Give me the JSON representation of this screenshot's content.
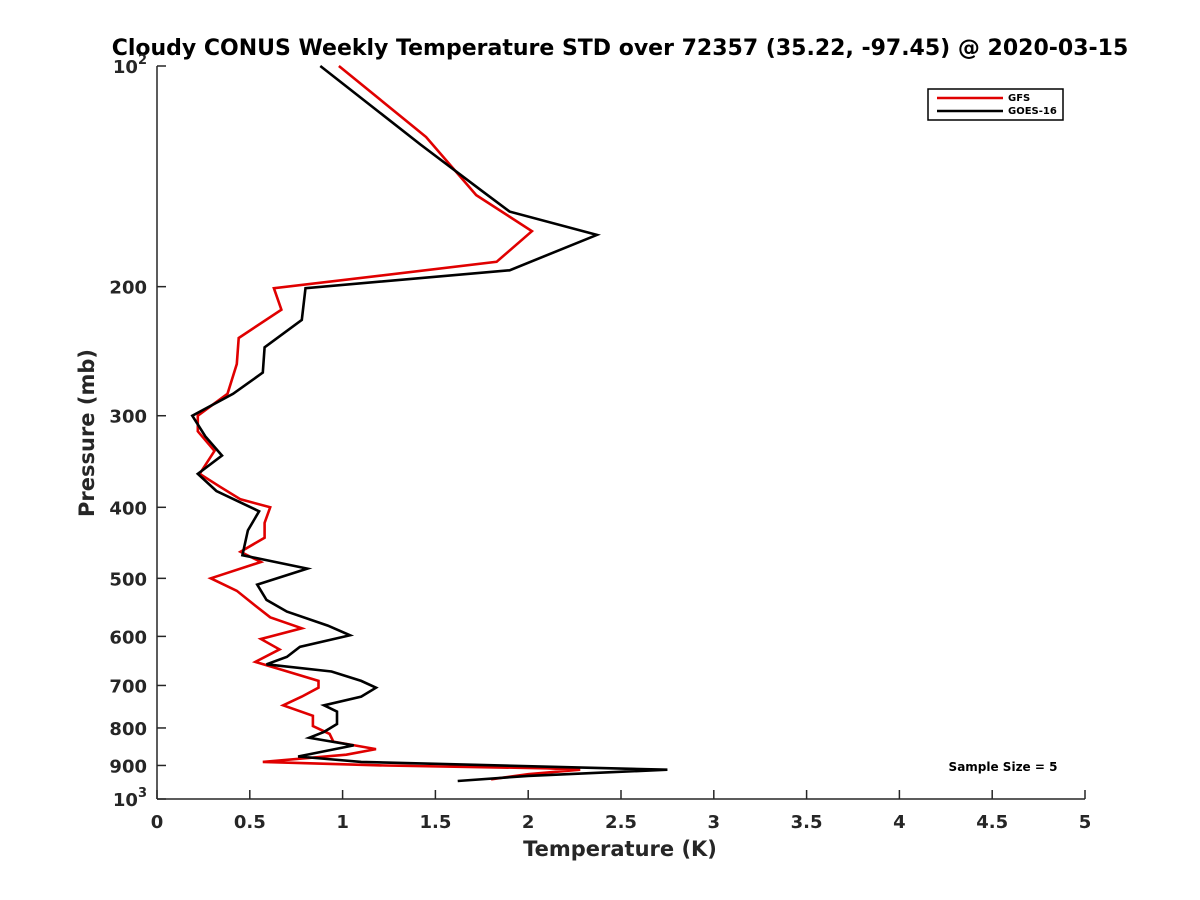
{
  "chart_data": {
    "type": "line",
    "title": "Cloudy CONUS Weekly Temperature STD over 72357 (35.22, -97.45) @ 2020-03-15",
    "xlabel": "Temperature (K)",
    "ylabel": "Pressure (mb)",
    "xlim": [
      0,
      5
    ],
    "ylim": [
      100,
      1000
    ],
    "y_scale": "log",
    "y_reversed": true,
    "grid": false,
    "legend_position": "top-right",
    "x_ticks": [
      0,
      0.5,
      1,
      1.5,
      2,
      2.5,
      3,
      3.5,
      4,
      4.5,
      5
    ],
    "x_tick_labels": [
      "0",
      "0.5",
      "1",
      "1.5",
      "2",
      "2.5",
      "3",
      "3.5",
      "4",
      "4.5",
      "5"
    ],
    "y_ticks": [
      {
        "value": 100,
        "base": "10",
        "exp": "2"
      },
      {
        "value": 200,
        "label": "200"
      },
      {
        "value": 300,
        "label": "300"
      },
      {
        "value": 400,
        "label": "400"
      },
      {
        "value": 500,
        "label": "500"
      },
      {
        "value": 600,
        "label": "600"
      },
      {
        "value": 700,
        "label": "700"
      },
      {
        "value": 800,
        "label": "800"
      },
      {
        "value": 900,
        "label": "900"
      },
      {
        "value": 1000,
        "base": "10",
        "exp": "3"
      }
    ],
    "series": [
      {
        "name": "GFS",
        "color": "#e00000",
        "points": [
          [
            0.98,
            100
          ],
          [
            1.45,
            125
          ],
          [
            1.72,
            150
          ],
          [
            2.02,
            168
          ],
          [
            1.83,
            185
          ],
          [
            0.63,
            201
          ],
          [
            0.67,
            215
          ],
          [
            0.44,
            235
          ],
          [
            0.43,
            255
          ],
          [
            0.38,
            280
          ],
          [
            0.22,
            300
          ],
          [
            0.22,
            315
          ],
          [
            0.31,
            335
          ],
          [
            0.23,
            360
          ],
          [
            0.34,
            375
          ],
          [
            0.45,
            390
          ],
          [
            0.61,
            400
          ],
          [
            0.58,
            420
          ],
          [
            0.58,
            440
          ],
          [
            0.45,
            460
          ],
          [
            0.56,
            475
          ],
          [
            0.29,
            500
          ],
          [
            0.43,
            520
          ],
          [
            0.53,
            545
          ],
          [
            0.61,
            565
          ],
          [
            0.78,
            585
          ],
          [
            0.56,
            605
          ],
          [
            0.66,
            625
          ],
          [
            0.53,
            650
          ],
          [
            0.66,
            665
          ],
          [
            0.87,
            690
          ],
          [
            0.87,
            705
          ],
          [
            0.78,
            725
          ],
          [
            0.68,
            745
          ],
          [
            0.84,
            770
          ],
          [
            0.84,
            795
          ],
          [
            0.93,
            815
          ],
          [
            0.95,
            835
          ],
          [
            1.18,
            855
          ],
          [
            1.02,
            870
          ],
          [
            0.57,
            890
          ],
          [
            1.23,
            900
          ],
          [
            2.1,
            908
          ],
          [
            2.28,
            912
          ],
          [
            2.0,
            925
          ],
          [
            1.8,
            940
          ]
        ]
      },
      {
        "name": "GOES-16",
        "color": "#000000",
        "points": [
          [
            0.88,
            100
          ],
          [
            1.42,
            128
          ],
          [
            1.75,
            148
          ],
          [
            1.9,
            158
          ],
          [
            2.37,
            170
          ],
          [
            1.9,
            190
          ],
          [
            0.8,
            201
          ],
          [
            0.78,
            222
          ],
          [
            0.58,
            242
          ],
          [
            0.57,
            262
          ],
          [
            0.41,
            280
          ],
          [
            0.19,
            300
          ],
          [
            0.26,
            320
          ],
          [
            0.35,
            340
          ],
          [
            0.22,
            360
          ],
          [
            0.32,
            380
          ],
          [
            0.55,
            405
          ],
          [
            0.49,
            430
          ],
          [
            0.46,
            465
          ],
          [
            0.81,
            485
          ],
          [
            0.54,
            510
          ],
          [
            0.59,
            535
          ],
          [
            0.7,
            555
          ],
          [
            0.92,
            580
          ],
          [
            1.04,
            598
          ],
          [
            0.77,
            620
          ],
          [
            0.7,
            640
          ],
          [
            0.59,
            655
          ],
          [
            0.94,
            670
          ],
          [
            1.1,
            690
          ],
          [
            1.18,
            705
          ],
          [
            1.1,
            725
          ],
          [
            0.9,
            745
          ],
          [
            0.97,
            760
          ],
          [
            0.97,
            790
          ],
          [
            0.9,
            810
          ],
          [
            0.82,
            825
          ],
          [
            1.06,
            845
          ],
          [
            0.76,
            875
          ],
          [
            1.1,
            890
          ],
          [
            2.75,
            912
          ],
          [
            2.0,
            930
          ],
          [
            1.62,
            945
          ]
        ]
      }
    ],
    "annotation": "Sample Size = 5"
  }
}
